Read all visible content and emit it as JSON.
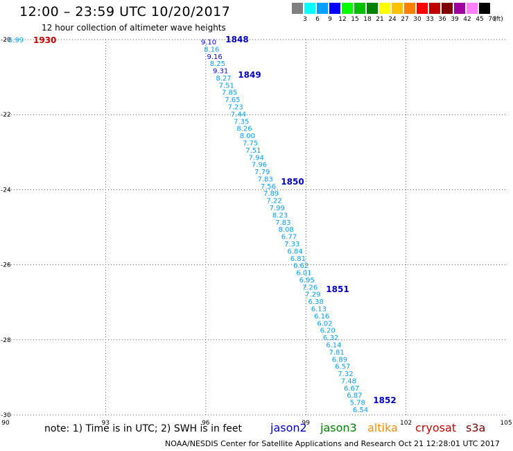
{
  "header": {
    "title": "12:00 – 23:59 UTC 10/20/2017",
    "subtitle": "12 hour collection of altimeter wave heights"
  },
  "legend": {
    "labels": [
      "3",
      "6",
      "9",
      "12",
      "15",
      "18",
      "21",
      "24",
      "27",
      "30",
      "33",
      "36",
      "39",
      "42",
      "45",
      "70"
    ],
    "unit": "(ft)",
    "colors": [
      "#808080",
      "#00ffff",
      "#00a0ff",
      "#0000ff",
      "#00ff00",
      "#00c000",
      "#008000",
      "#ffff00",
      "#ffc000",
      "#ff8000",
      "#ff0000",
      "#c00000",
      "#800000",
      "#a000a0",
      "#ff80ff",
      "#000000"
    ]
  },
  "map": {
    "x_ticks": [
      "90",
      "93",
      "96",
      "99",
      "102",
      "105"
    ],
    "y_ticks": [
      "-20",
      "-22",
      "-24",
      "-26",
      "-28",
      "-30"
    ],
    "grid": "dotted"
  },
  "track": {
    "jason2_values": [
      "9.10",
      "8.16",
      "9.16",
      "8.25",
      "9.31",
      "8.27",
      "7.51",
      "7.85",
      "7.65",
      "7.23",
      "7.44",
      "7.35",
      "8.26",
      "8.00",
      "7.75",
      "7.51",
      "7.94",
      "7.96",
      "7.79",
      "7.83",
      "7.56",
      "7.89",
      "7.22",
      "7.99",
      "8.23",
      "7.83",
      "8.08",
      "6.77",
      "7.33",
      "6.84",
      "6.81",
      "6.62",
      "6.01",
      "6.95",
      "7.26",
      "7.29",
      "6.38",
      "6.13",
      "6.16",
      "6.02",
      "6.20",
      "6.32",
      "6.14",
      "7.81",
      "6.89",
      "6.57",
      "7.32",
      "7.48",
      "6.67",
      "6.87",
      "5.78",
      "6.54"
    ],
    "pass_labels": [
      "1848",
      "1849",
      "1850",
      "1851",
      "1852"
    ],
    "cryosat_values": [
      "5.99"
    ],
    "cryosat_pass": "1930"
  },
  "colors": {
    "jason2": "#0000cc",
    "jason3": "#008000",
    "altika": "#ff8c00",
    "cryosat": "#cc0000",
    "s3a": "#800000"
  },
  "note": "note:  1) Time is in UTC; 2) SWH is in feet",
  "satellites": {
    "jason2": "jason2",
    "jason3": "jason3",
    "altika": "altika",
    "cryosat": "cryosat",
    "s3a": "s3a"
  },
  "footer": "NOAA/NESDIS Center for Satellite Applications and Research    Oct 21 12:28:01 UTC 2017"
}
